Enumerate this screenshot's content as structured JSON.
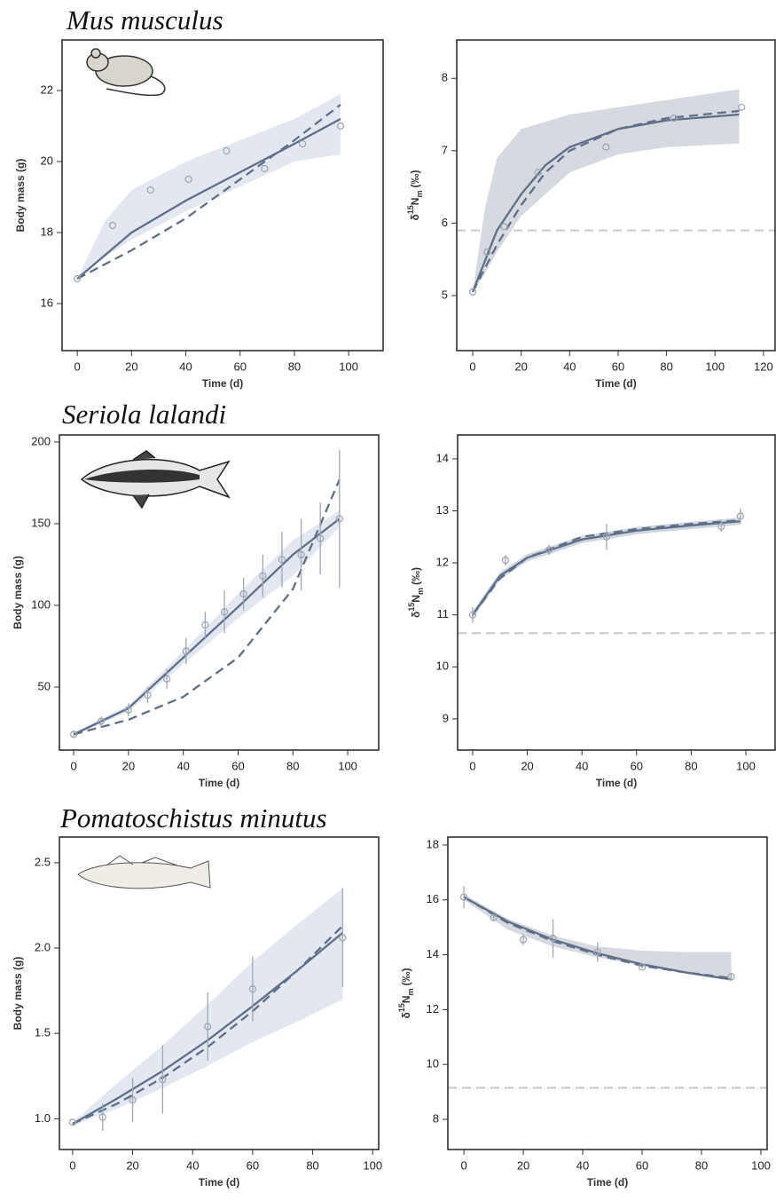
{
  "chart_data": [
    {
      "type": "line",
      "title": "Mus musculus",
      "xlabel": "Time (d)",
      "ylabel": "Body mass (g)",
      "xlim": [
        -5.6,
        112.7
      ],
      "ylim": [
        14.675,
        23.425
      ],
      "xticks": [
        0,
        20,
        40,
        60,
        80,
        100
      ],
      "yticks": [
        16,
        18,
        20,
        22
      ],
      "series": [
        {
          "kind": "band",
          "color": "#e3e8f0",
          "x": [
            0,
            10,
            20,
            40,
            60,
            80,
            97
          ],
          "upper": [
            16.7,
            18.3,
            19.2,
            20.0,
            20.6,
            21.2,
            21.9
          ],
          "lower": [
            16.7,
            17.3,
            17.8,
            18.6,
            19.3,
            20.0,
            20.2
          ]
        },
        {
          "kind": "solid",
          "color": "#5f6f88",
          "x": [
            0,
            20,
            40,
            60,
            80,
            97
          ],
          "values": [
            16.7,
            18.0,
            18.9,
            19.7,
            20.5,
            21.2
          ]
        },
        {
          "kind": "dashed",
          "color": "#5f6f88",
          "x": [
            0,
            20,
            40,
            60,
            80,
            97
          ],
          "values": [
            16.7,
            17.5,
            18.4,
            19.5,
            20.6,
            21.6
          ]
        },
        {
          "kind": "points",
          "color": "#9ea7b4",
          "x": [
            0,
            13,
            27,
            41,
            55,
            69,
            83,
            97
          ],
          "values": [
            16.7,
            18.2,
            19.2,
            19.5,
            20.3,
            19.8,
            20.5,
            21.0
          ]
        }
      ]
    },
    {
      "type": "line",
      "xlabel": "Time (d)",
      "ylabel": {
        "symbol": "δ",
        "superscript": "15",
        "element": "N",
        "subscript": "m",
        "unit": "(‰)"
      },
      "xlim": [
        -6.6,
        124.8
      ],
      "ylim": [
        4.24,
        8.53
      ],
      "xticks": [
        0,
        20,
        40,
        60,
        80,
        100,
        120
      ],
      "yticks": [
        5,
        6,
        7,
        8
      ],
      "reference_line": 5.9,
      "reference_color": "#c8c8c8",
      "series": [
        {
          "kind": "band",
          "color": "#d6d9df",
          "x": [
            0,
            5,
            10,
            20,
            40,
            60,
            80,
            110
          ],
          "upper": [
            5.05,
            6.2,
            6.9,
            7.3,
            7.5,
            7.6,
            7.7,
            7.85
          ],
          "lower": [
            5.05,
            5.3,
            5.6,
            6.1,
            6.7,
            6.95,
            7.05,
            7.1
          ]
        },
        {
          "kind": "solid",
          "color": "#5f6f88",
          "x": [
            0,
            10,
            20,
            30,
            40,
            60,
            80,
            110
          ],
          "values": [
            5.05,
            5.9,
            6.4,
            6.8,
            7.05,
            7.3,
            7.42,
            7.5
          ]
        },
        {
          "kind": "dashed",
          "color": "#5f6f88",
          "x": [
            0,
            10,
            20,
            30,
            40,
            60,
            80,
            110
          ],
          "values": [
            5.05,
            5.7,
            6.25,
            6.7,
            7.0,
            7.3,
            7.45,
            7.55
          ]
        },
        {
          "kind": "points",
          "color": "#9ea7b4",
          "x": [
            0,
            6,
            13,
            27,
            55,
            83,
            111
          ],
          "values": [
            5.05,
            5.6,
            5.95,
            6.7,
            7.05,
            7.45,
            7.6
          ]
        }
      ]
    },
    {
      "type": "line",
      "title": "Seriola lalandi",
      "xlabel": "Time (d)",
      "ylabel": "Body mass (g)",
      "xlim": [
        -5.2,
        111.3
      ],
      "ylim": [
        11.4,
        204.3
      ],
      "xticks": [
        0,
        20,
        40,
        60,
        80,
        100
      ],
      "yticks": [
        50,
        100,
        150,
        200
      ],
      "series": [
        {
          "kind": "band",
          "color": "#e3e8f0",
          "x": [
            0,
            20,
            40,
            60,
            80,
            97
          ],
          "upper": [
            22,
            39,
            72,
            107,
            140,
            158
          ],
          "lower": [
            20,
            35,
            64,
            92,
            118,
            148
          ]
        },
        {
          "kind": "solid",
          "color": "#5f6f88",
          "x": [
            0,
            20,
            40,
            60,
            80,
            97
          ],
          "values": [
            21,
            37,
            68,
            99,
            131,
            153
          ]
        },
        {
          "kind": "dashed",
          "color": "#5f6f88",
          "x": [
            0,
            20,
            40,
            60,
            80,
            97
          ],
          "values": [
            21,
            30,
            44,
            68,
            110,
            177
          ]
        },
        {
          "kind": "points",
          "color": "#9ea7b4",
          "x": [
            0,
            10,
            20,
            27,
            34,
            41,
            48,
            55,
            62,
            69,
            76,
            83,
            90,
            97
          ],
          "values": [
            21,
            29,
            36,
            45,
            55,
            72,
            88,
            96,
            107,
            118,
            128,
            131,
            141,
            153
          ],
          "errors": [
            2,
            3,
            4,
            5,
            6,
            8,
            8,
            13,
            10,
            13,
            17,
            22,
            22,
            42
          ]
        }
      ]
    },
    {
      "type": "line",
      "xlabel": "Time (d)",
      "ylabel": {
        "symbol": "δ",
        "superscript": "15",
        "element": "N",
        "subscript": "m",
        "unit": "(‰)"
      },
      "xlim": [
        -5.5,
        110.7
      ],
      "ylim": [
        8.4,
        14.46
      ],
      "xticks": [
        0,
        20,
        40,
        60,
        80,
        100
      ],
      "yticks": [
        9,
        10,
        11,
        12,
        13,
        14
      ],
      "reference_line": 10.65,
      "reference_color": "#c8c8c8",
      "series": [
        {
          "kind": "band",
          "color": "#d0d6e0",
          "x": [
            0,
            10,
            20,
            40,
            60,
            80,
            98
          ],
          "upper": [
            11.07,
            11.82,
            12.17,
            12.52,
            12.69,
            12.79,
            12.87
          ],
          "lower": [
            10.93,
            11.68,
            12.03,
            12.38,
            12.55,
            12.65,
            12.73
          ]
        },
        {
          "kind": "solid",
          "color": "#5f6f88",
          "x": [
            0,
            10,
            20,
            40,
            60,
            80,
            98
          ],
          "values": [
            11,
            11.75,
            12.1,
            12.45,
            12.62,
            12.72,
            12.8
          ]
        },
        {
          "kind": "dashed",
          "color": "#5f6f88",
          "x": [
            0,
            10,
            20,
            40,
            60,
            80,
            98
          ],
          "values": [
            11,
            11.7,
            12.1,
            12.5,
            12.65,
            12.75,
            12.82
          ]
        },
        {
          "kind": "points",
          "color": "#9ea7b4",
          "x": [
            0,
            12,
            28,
            49,
            91,
            98
          ],
          "values": [
            11.0,
            12.05,
            12.25,
            12.5,
            12.7,
            12.9
          ],
          "errors": [
            0.15,
            0.1,
            0.1,
            0.25,
            0.1,
            0.15
          ]
        }
      ]
    },
    {
      "type": "line",
      "title": "Pomatoschistus minutus",
      "xlabel": "Time (d)",
      "ylabel": "Body mass (g)",
      "xlim": [
        -4.4,
        102
      ],
      "ylim": [
        0.82,
        2.65
      ],
      "xticks": [
        0,
        20,
        40,
        60,
        80,
        100
      ],
      "yticks": [
        {
          "value": 1,
          "label": "1.0"
        },
        1.5,
        {
          "value": 2,
          "label": "2.0"
        },
        2.5
      ],
      "series": [
        {
          "kind": "band",
          "color": "#e3e8f0",
          "x": [
            0,
            15,
            30,
            45,
            60,
            75,
            90
          ],
          "upper": [
            0.98,
            1.21,
            1.43,
            1.67,
            1.92,
            2.14,
            2.35
          ],
          "lower": [
            0.96,
            1.06,
            1.18,
            1.31,
            1.45,
            1.57,
            1.7
          ]
        },
        {
          "kind": "solid",
          "color": "#5f6f88",
          "x": [
            0,
            15,
            30,
            45,
            60,
            75,
            90
          ],
          "values": [
            0.97,
            1.12,
            1.28,
            1.46,
            1.66,
            1.87,
            2.09
          ]
        },
        {
          "kind": "dashed",
          "color": "#5f6f88",
          "x": [
            0,
            15,
            30,
            45,
            60,
            75,
            90
          ],
          "values": [
            0.97,
            1.09,
            1.24,
            1.42,
            1.63,
            1.87,
            2.13
          ]
        },
        {
          "kind": "points",
          "color": "#9ea7b4",
          "x": [
            0,
            10,
            20,
            30,
            45,
            60,
            90
          ],
          "values": [
            0.98,
            1.01,
            1.11,
            1.23,
            1.54,
            1.76,
            2.06
          ],
          "errors": [
            0,
            0.08,
            0.13,
            0.2,
            0.2,
            0.19,
            0.29
          ]
        }
      ]
    },
    {
      "type": "line",
      "xlabel": "Time (d)",
      "ylabel": {
        "symbol": "δ",
        "superscript": "15",
        "element": "N",
        "subscript": "m",
        "unit": "(‰)"
      },
      "xlim": [
        -5.4,
        102.1
      ],
      "ylim": [
        6.9,
        18.29
      ],
      "xticks": [
        0,
        20,
        40,
        60,
        80,
        100
      ],
      "yticks": [
        8,
        10,
        12,
        14,
        16,
        18
      ],
      "reference_line": 9.15,
      "reference_color": "#c8c8c8",
      "series": [
        {
          "kind": "band",
          "color": "#d6d9df",
          "x": [
            0,
            15,
            30,
            45,
            60,
            75,
            90
          ],
          "upper": [
            16.2,
            15.3,
            14.7,
            14.3,
            14.15,
            14.1,
            14.1
          ],
          "lower": [
            16.0,
            14.9,
            14.3,
            13.9,
            13.6,
            13.3,
            13.05
          ]
        },
        {
          "kind": "solid",
          "color": "#5f6f88",
          "x": [
            0,
            15,
            30,
            45,
            60,
            75,
            90
          ],
          "values": [
            16.1,
            15.2,
            14.55,
            14.05,
            13.65,
            13.35,
            13.1
          ]
        },
        {
          "kind": "dashed",
          "color": "#5f6f88",
          "x": [
            0,
            15,
            30,
            45,
            60,
            75,
            90
          ],
          "values": [
            16.1,
            15.15,
            14.5,
            14.0,
            13.6,
            13.35,
            13.15
          ]
        },
        {
          "kind": "points",
          "color": "#9ea7b4",
          "x": [
            0,
            10,
            20,
            30,
            45,
            60,
            90
          ],
          "values": [
            16.1,
            15.35,
            14.55,
            14.6,
            14.1,
            13.55,
            13.2
          ],
          "errors": [
            0.4,
            0.1,
            0.2,
            0.7,
            0.35,
            0.05,
            0.15
          ]
        }
      ]
    }
  ]
}
